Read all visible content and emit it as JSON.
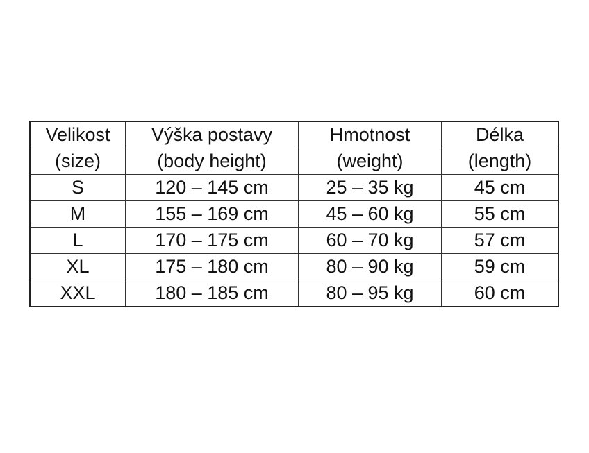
{
  "table": {
    "header": [
      [
        "Velikost",
        "Výška postavy",
        "Hmotnost",
        "Délka"
      ],
      [
        "(size)",
        "(body height)",
        "(weight)",
        "(length)"
      ]
    ],
    "rows": [
      [
        "S",
        "120 – 145 cm",
        "25 – 35 kg",
        "45 cm"
      ],
      [
        "M",
        "155 – 169 cm",
        "45 – 60 kg",
        "55 cm"
      ],
      [
        "L",
        "170 – 175 cm",
        "60 – 70 kg",
        "57 cm"
      ],
      [
        "XL",
        "175 – 180 cm",
        "80 – 90 kg",
        "59 cm"
      ],
      [
        "XXL",
        "180 – 185 cm",
        "80 – 95 kg",
        "60 cm"
      ]
    ]
  }
}
